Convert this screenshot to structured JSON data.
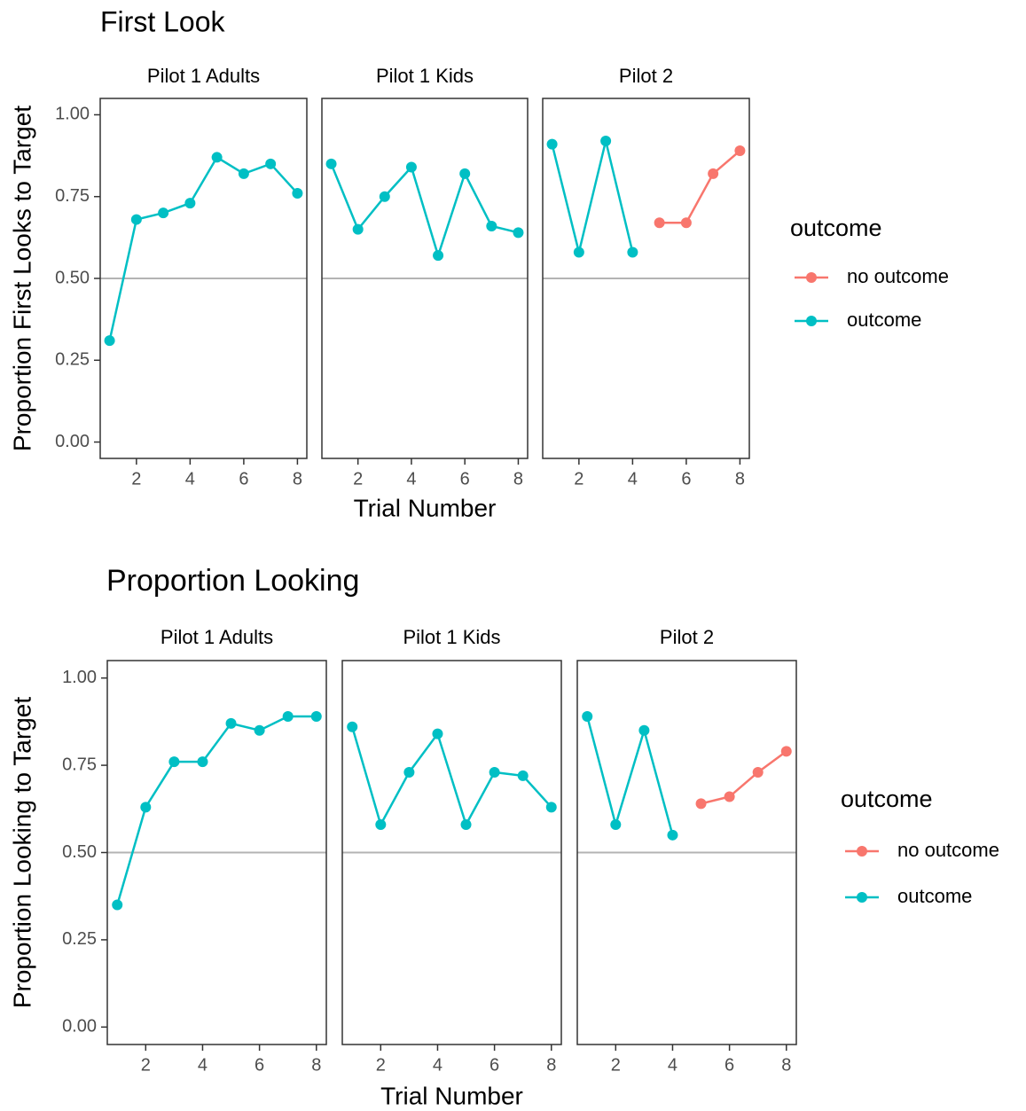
{
  "chart_data": [
    {
      "type": "line",
      "title": "First Look",
      "xlabel": "Trial Number",
      "ylabel": "Proportion First Looks to Target",
      "facets": [
        "Pilot 1 Adults",
        "Pilot 1 Kids",
        "Pilot 2"
      ],
      "legend_title": "outcome",
      "xlim": [
        0.65,
        8.35
      ],
      "xticks": [
        2,
        4,
        6,
        8
      ],
      "ylim": [
        -0.05,
        1.05
      ],
      "yticks": [
        {
          "value": 0,
          "label": "0.00"
        },
        {
          "value": 0.25,
          "label": "0.25"
        },
        {
          "value": 0.5,
          "label": "0.50"
        },
        {
          "value": 0.75,
          "label": "0.75"
        },
        {
          "value": 1,
          "label": "1.00"
        }
      ],
      "hline": 0.5,
      "hline_color": "#b3b3b3",
      "series": [
        {
          "name": "no outcome",
          "color": "#f8766d",
          "facet": 2,
          "x": [
            5,
            6,
            7,
            8
          ],
          "values": [
            0.67,
            0.67,
            0.82,
            0.89
          ]
        },
        {
          "name": "outcome",
          "color": "#00bfc4",
          "facet": 0,
          "x": [
            1,
            2,
            3,
            4,
            5,
            6,
            7,
            8
          ],
          "values": [
            0.31,
            0.68,
            0.7,
            0.73,
            0.87,
            0.82,
            0.85,
            0.76
          ]
        },
        {
          "name": "outcome",
          "color": "#00bfc4",
          "facet": 1,
          "x": [
            1,
            2,
            3,
            4,
            5,
            6,
            7,
            8
          ],
          "values": [
            0.85,
            0.65,
            0.75,
            0.84,
            0.57,
            0.82,
            0.66,
            0.64
          ]
        },
        {
          "name": "outcome",
          "color": "#00bfc4",
          "facet": 2,
          "x": [
            1,
            2,
            3,
            4
          ],
          "values": [
            0.91,
            0.58,
            0.92,
            0.58
          ]
        }
      ]
    },
    {
      "type": "line",
      "title": "Proportion Looking",
      "xlabel": "Trial Number",
      "ylabel": "Proportion Looking to Target",
      "facets": [
        "Pilot 1 Adults",
        "Pilot 1 Kids",
        "Pilot 2"
      ],
      "legend_title": "outcome",
      "xlim": [
        0.65,
        8.35
      ],
      "xticks": [
        2,
        4,
        6,
        8
      ],
      "ylim": [
        -0.05,
        1.05
      ],
      "yticks": [
        {
          "value": 0,
          "label": "0.00"
        },
        {
          "value": 0.25,
          "label": "0.25"
        },
        {
          "value": 0.5,
          "label": "0.50"
        },
        {
          "value": 0.75,
          "label": "0.75"
        },
        {
          "value": 1,
          "label": "1.00"
        }
      ],
      "hline": 0.5,
      "hline_color": "#b3b3b3",
      "series": [
        {
          "name": "no outcome",
          "color": "#f8766d",
          "facet": 2,
          "x": [
            5,
            6,
            7,
            8
          ],
          "values": [
            0.64,
            0.66,
            0.73,
            0.79
          ]
        },
        {
          "name": "outcome",
          "color": "#00bfc4",
          "facet": 0,
          "x": [
            1,
            2,
            3,
            4,
            5,
            6,
            7,
            8
          ],
          "values": [
            0.35,
            0.63,
            0.76,
            0.76,
            0.87,
            0.85,
            0.89,
            0.89
          ]
        },
        {
          "name": "outcome",
          "color": "#00bfc4",
          "facet": 1,
          "x": [
            1,
            2,
            3,
            4,
            5,
            6,
            7,
            8
          ],
          "values": [
            0.86,
            0.58,
            0.73,
            0.84,
            0.58,
            0.73,
            0.72,
            0.63
          ]
        },
        {
          "name": "outcome",
          "color": "#00bfc4",
          "facet": 2,
          "x": [
            1,
            2,
            3,
            4
          ],
          "values": [
            0.89,
            0.58,
            0.85,
            0.55
          ]
        }
      ]
    }
  ]
}
